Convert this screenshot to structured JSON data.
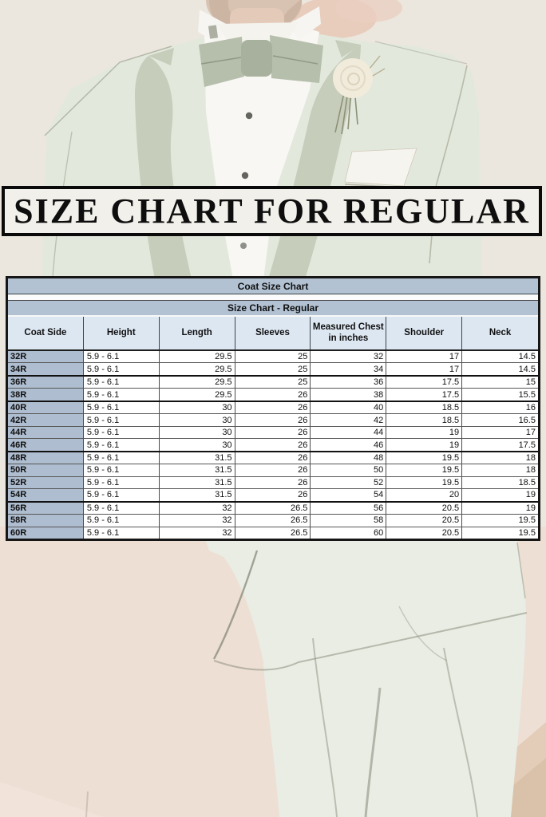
{
  "banner": {
    "title": "SIZE CHART FOR REGULAR"
  },
  "table": {
    "title": "Coat Size Chart",
    "subtitle": "Size Chart - Regular",
    "columns": [
      "Coat Side",
      "Height",
      "Length",
      "Sleeves",
      "Measured Chest in inches",
      "Shoulder",
      "Neck"
    ],
    "rows": [
      [
        "32R",
        "5.9 - 6.1",
        "29.5",
        "25",
        "32",
        "17",
        "14.5"
      ],
      [
        "34R",
        "5.9 - 6.1",
        "29.5",
        "25",
        "34",
        "17",
        "14.5"
      ],
      [
        "36R",
        "5.9 - 6.1",
        "29.5",
        "25",
        "36",
        "17.5",
        "15"
      ],
      [
        "38R",
        "5.9 - 6.1",
        "29.5",
        "26",
        "38",
        "17.5",
        "15.5"
      ],
      [
        "40R",
        "5.9 - 6.1",
        "30",
        "26",
        "40",
        "18.5",
        "16"
      ],
      [
        "42R",
        "5.9 - 6.1",
        "30",
        "26",
        "42",
        "18.5",
        "16.5"
      ],
      [
        "44R",
        "5.9 - 6.1",
        "30",
        "26",
        "44",
        "19",
        "17"
      ],
      [
        "46R",
        "5.9 - 6.1",
        "30",
        "26",
        "46",
        "19",
        "17.5"
      ],
      [
        "48R",
        "5.9 - 6.1",
        "31.5",
        "26",
        "48",
        "19.5",
        "18"
      ],
      [
        "50R",
        "5.9 - 6.1",
        "31.5",
        "26",
        "50",
        "19.5",
        "18"
      ],
      [
        "52R",
        "5.9 - 6.1",
        "31.5",
        "26",
        "52",
        "19.5",
        "18.5"
      ],
      [
        "54R",
        "5.9 - 6.1",
        "31.5",
        "26",
        "54",
        "20",
        "19"
      ],
      [
        "56R",
        "5.9 - 6.1",
        "32",
        "26.5",
        "56",
        "20.5",
        "19"
      ],
      [
        "58R",
        "5.9 - 6.1",
        "32",
        "26.5",
        "58",
        "20.5",
        "19.5"
      ],
      [
        "60R",
        "5.9 - 6.1",
        "32",
        "26.5",
        "60",
        "20.5",
        "19.5"
      ]
    ],
    "group_break_after": [
      "34R",
      "38R",
      "46R",
      "54R"
    ]
  },
  "chart_data": {
    "type": "table",
    "title": "Coat Size Chart",
    "subtitle": "Size Chart - Regular",
    "columns": [
      "Coat Side",
      "Height",
      "Length",
      "Sleeves",
      "Measured Chest in inches",
      "Shoulder",
      "Neck"
    ],
    "rows": [
      [
        "32R",
        "5.9 - 6.1",
        29.5,
        25,
        32,
        17,
        14.5
      ],
      [
        "34R",
        "5.9 - 6.1",
        29.5,
        25,
        34,
        17,
        14.5
      ],
      [
        "36R",
        "5.9 - 6.1",
        29.5,
        25,
        36,
        17.5,
        15
      ],
      [
        "38R",
        "5.9 - 6.1",
        29.5,
        26,
        38,
        17.5,
        15.5
      ],
      [
        "40R",
        "5.9 - 6.1",
        30,
        26,
        40,
        18.5,
        16
      ],
      [
        "42R",
        "5.9 - 6.1",
        30,
        26,
        42,
        18.5,
        16.5
      ],
      [
        "44R",
        "5.9 - 6.1",
        30,
        26,
        44,
        19,
        17
      ],
      [
        "46R",
        "5.9 - 6.1",
        30,
        26,
        46,
        19,
        17.5
      ],
      [
        "48R",
        "5.9 - 6.1",
        31.5,
        26,
        48,
        19.5,
        18
      ],
      [
        "50R",
        "5.9 - 6.1",
        31.5,
        26,
        50,
        19.5,
        18
      ],
      [
        "52R",
        "5.9 - 6.1",
        31.5,
        26,
        52,
        19.5,
        18.5
      ],
      [
        "54R",
        "5.9 - 6.1",
        31.5,
        26,
        54,
        20,
        19
      ],
      [
        "56R",
        "5.9 - 6.1",
        32,
        26.5,
        56,
        20.5,
        19
      ],
      [
        "58R",
        "5.9 - 6.1",
        32,
        26.5,
        58,
        20.5,
        19.5
      ],
      [
        "60R",
        "5.9 - 6.1",
        32,
        26.5,
        60,
        20.5,
        19.5
      ]
    ]
  },
  "colors": {
    "banner_bg": "#f2f0ea",
    "banner_border": "#0a0a0a",
    "table_title_bg": "#b2c2d3",
    "table_header_bg": "#dde7f2",
    "table_first_col_bg": "#aebdcf",
    "suit_mint": "#e3e8dd",
    "lapel_sage": "#c6cdba",
    "wall_top": "#ebe7de",
    "wall_bottom": "#ecdcd2",
    "floor_tan": "#d9c2a9"
  }
}
